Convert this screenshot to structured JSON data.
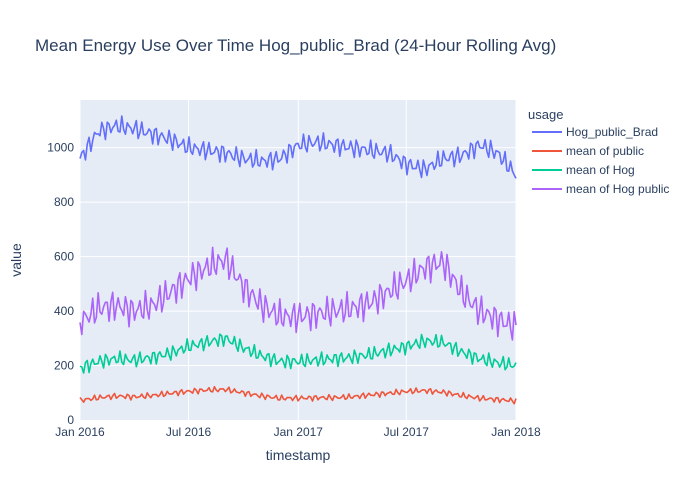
{
  "chart_data": {
    "type": "line",
    "title": "Mean Energy Use Over Time Hog_public_Brad (24-Hour Rolling Avg)",
    "xlabel": "timestamp",
    "ylabel": "value",
    "xlim": [
      "2016-01-01",
      "2018-01-01"
    ],
    "ylim": [
      0,
      1175
    ],
    "x_ticks": [
      {
        "value": "2016-01-01",
        "label": "Jan 2016"
      },
      {
        "value": "2016-07-01",
        "label": "Jul 2016"
      },
      {
        "value": "2017-01-01",
        "label": "Jan 2017"
      },
      {
        "value": "2017-07-01",
        "label": "Jul 2017"
      },
      {
        "value": "2018-01-01",
        "label": "Jan 2018"
      }
    ],
    "y_ticks": [
      0,
      200,
      400,
      600,
      800,
      1000
    ],
    "grid": true,
    "legend": {
      "title": "usage",
      "position": "right"
    },
    "x": [
      "2016-01-01",
      "2016-02-01",
      "2016-03-01",
      "2016-04-01",
      "2016-05-01",
      "2016-06-01",
      "2016-07-01",
      "2016-08-01",
      "2016-09-01",
      "2016-10-01",
      "2016-11-01",
      "2016-12-01",
      "2017-01-01",
      "2017-02-01",
      "2017-03-01",
      "2017-04-01",
      "2017-05-01",
      "2017-06-01",
      "2017-07-01",
      "2017-08-01",
      "2017-09-01",
      "2017-10-01",
      "2017-11-01",
      "2017-12-01",
      "2018-01-01"
    ],
    "series": [
      {
        "name": "Hog_public_Brad",
        "color": "#636efa",
        "values": [
          960,
          1060,
          1080,
          1070,
          1050,
          1030,
          1000,
          990,
          980,
          960,
          950,
          960,
          1010,
          1020,
          1010,
          1000,
          990,
          980,
          940,
          920,
          960,
          970,
          1010,
          980,
          900
        ]
      },
      {
        "name": "mean of public",
        "color": "#ef553b",
        "values": [
          72,
          82,
          88,
          85,
          90,
          98,
          105,
          110,
          112,
          100,
          88,
          80,
          80,
          82,
          82,
          85,
          92,
          98,
          105,
          108,
          102,
          90,
          80,
          75,
          70
        ]
      },
      {
        "name": "mean of Hog",
        "color": "#00cc96",
        "values": [
          190,
          215,
          225,
          220,
          230,
          245,
          270,
          285,
          300,
          265,
          235,
          215,
          215,
          220,
          225,
          230,
          240,
          255,
          270,
          290,
          285,
          250,
          225,
          210,
          200
        ]
      },
      {
        "name": "mean of Hog public",
        "color": "#ab63fa",
        "values": [
          360,
          410,
          420,
          400,
          420,
          470,
          520,
          560,
          590,
          490,
          420,
          380,
          380,
          390,
          400,
          410,
          430,
          470,
          510,
          560,
          580,
          470,
          400,
          370,
          340
        ]
      }
    ]
  }
}
